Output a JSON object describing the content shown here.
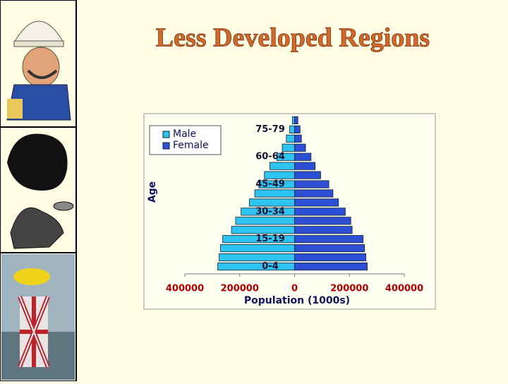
{
  "slide": {
    "title": "Less Developed Regions"
  },
  "chart_data": {
    "type": "population-pyramid",
    "x_label": "Population (1000s)",
    "y_label": "Age",
    "categories": [
      "0-4",
      null,
      null,
      "15-19",
      null,
      null,
      "30-34",
      null,
      null,
      "45-49",
      null,
      null,
      "60-64",
      null,
      null,
      "75-79",
      null
    ],
    "series": [
      {
        "name": "Male",
        "color": "#2ec4f2",
        "values": [
          280000,
          275000,
          270000,
          262000,
          230000,
          215000,
          195000,
          165000,
          145000,
          130000,
          110000,
          90000,
          65000,
          45000,
          30000,
          18000,
          8000
        ]
      },
      {
        "name": "Female",
        "color": "#2d4fd6",
        "values": [
          265000,
          260000,
          255000,
          250000,
          210000,
          205000,
          185000,
          160000,
          140000,
          125000,
          95000,
          75000,
          60000,
          40000,
          25000,
          20000,
          12000
        ]
      }
    ],
    "xlim": [
      -400000,
      400000
    ],
    "xticks": [
      {
        "value": -400000,
        "label": "400000"
      },
      {
        "value": -200000,
        "label": "200000"
      },
      0,
      200000,
      400000
    ],
    "legend": "top-left"
  }
}
